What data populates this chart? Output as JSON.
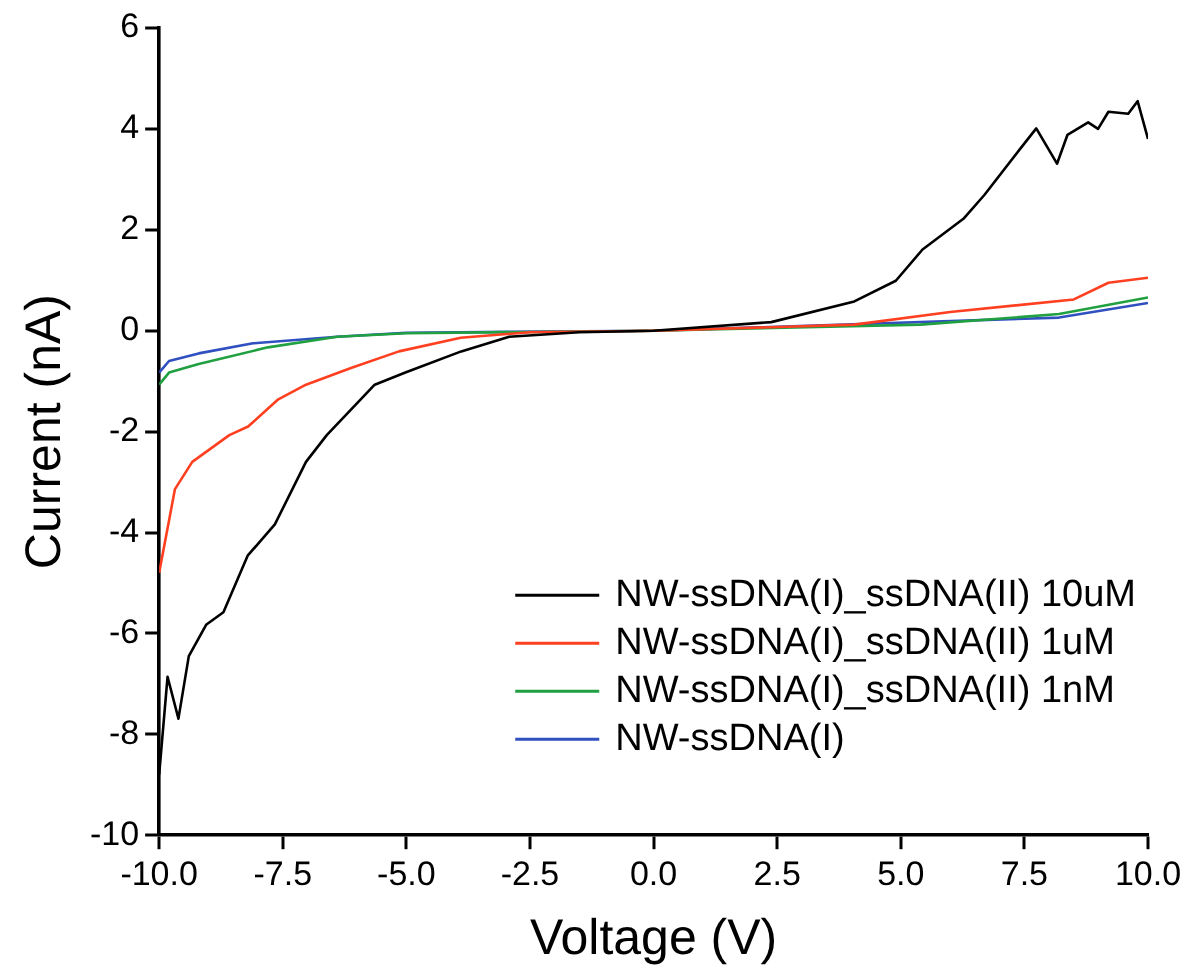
{
  "chart_data": {
    "type": "line",
    "xlabel": "Voltage (V)",
    "ylabel": "Current (nA)",
    "xlim": [
      -10,
      10
    ],
    "xticks": [
      {
        "value": -10,
        "label": "-10.0"
      },
      {
        "value": -7.5,
        "label": "-7.5"
      },
      {
        "value": -5,
        "label": "-5.0"
      },
      {
        "value": -2.5,
        "label": "-2.5"
      },
      {
        "value": 0,
        "label": "0.0"
      },
      {
        "value": 2.5,
        "label": "2.5"
      },
      {
        "value": 5,
        "label": "5.0"
      },
      {
        "value": 7.5,
        "label": "7.5"
      },
      {
        "value": 10,
        "label": "10.0"
      }
    ],
    "ylim": [
      -10,
      6
    ],
    "yticks": [
      -10,
      -8,
      -6,
      -4,
      -2,
      0,
      2,
      4,
      6
    ],
    "grid": false,
    "legend": "bottom right",
    "marker": "none",
    "line_style": "solid",
    "series": [
      {
        "name": "NW-ssDNA(I)_ssDNA(II) 10uM",
        "color": "#000000",
        "x": [
          -10,
          -9.83,
          -9.61,
          -9.4,
          -9.05,
          -8.7,
          -8.21,
          -7.66,
          -7.03,
          -6.61,
          -5.64,
          -5.02,
          -3.89,
          -2.92,
          -1.5,
          0,
          2.38,
          4.06,
          4.9,
          5.44,
          6.28,
          6.69,
          7.41,
          7.74,
          8.16,
          8.37,
          8.79,
          8.99,
          9.2,
          9.6,
          9.79,
          10
        ],
        "values": [
          -8.8,
          -6.86,
          -7.69,
          -6.45,
          -5.83,
          -5.58,
          -4.46,
          -3.84,
          -2.6,
          -2.07,
          -1.07,
          -0.83,
          -0.41,
          -0.12,
          -0.03,
          0,
          0.17,
          0.58,
          0.99,
          1.61,
          2.23,
          2.69,
          3.6,
          4.01,
          3.31,
          3.88,
          4.13,
          4.0,
          4.34,
          4.3,
          4.55,
          3.8
        ]
      },
      {
        "name": "NW-ssDNA(I)_ssDNA(II) 1uM",
        "color": "#ff4020",
        "x": [
          -10,
          -9.68,
          -9.33,
          -8.58,
          -8.2,
          -7.59,
          -7.03,
          -6.12,
          -5.15,
          -3.9,
          -2.5,
          0,
          4.06,
          6.0,
          8.5,
          9.2,
          10
        ],
        "values": [
          -4.8,
          -3.14,
          -2.6,
          -2.07,
          -1.9,
          -1.36,
          -1.07,
          -0.74,
          -0.41,
          -0.14,
          -0.03,
          0,
          0.12,
          0.37,
          0.62,
          0.95,
          1.05
        ]
      },
      {
        "name": "NW-ssDNA(I)_ssDNA(II) 1nM",
        "color": "#20a040",
        "x": [
          -10,
          -9.8,
          -9.2,
          -7.8,
          -6.4,
          -5,
          0,
          5.4,
          8.2,
          10
        ],
        "values": [
          -1.07,
          -0.83,
          -0.66,
          -0.33,
          -0.12,
          -0.05,
          0,
          0.12,
          0.33,
          0.66
        ]
      },
      {
        "name": "NW-ssDNA(I)",
        "color": "#3050c0",
        "x": [
          -10,
          -9.8,
          -9.2,
          -8.1,
          -6.4,
          -5,
          0,
          8.2,
          10
        ],
        "values": [
          -0.83,
          -0.6,
          -0.45,
          -0.25,
          -0.12,
          -0.04,
          0,
          0.26,
          0.55
        ]
      }
    ]
  }
}
